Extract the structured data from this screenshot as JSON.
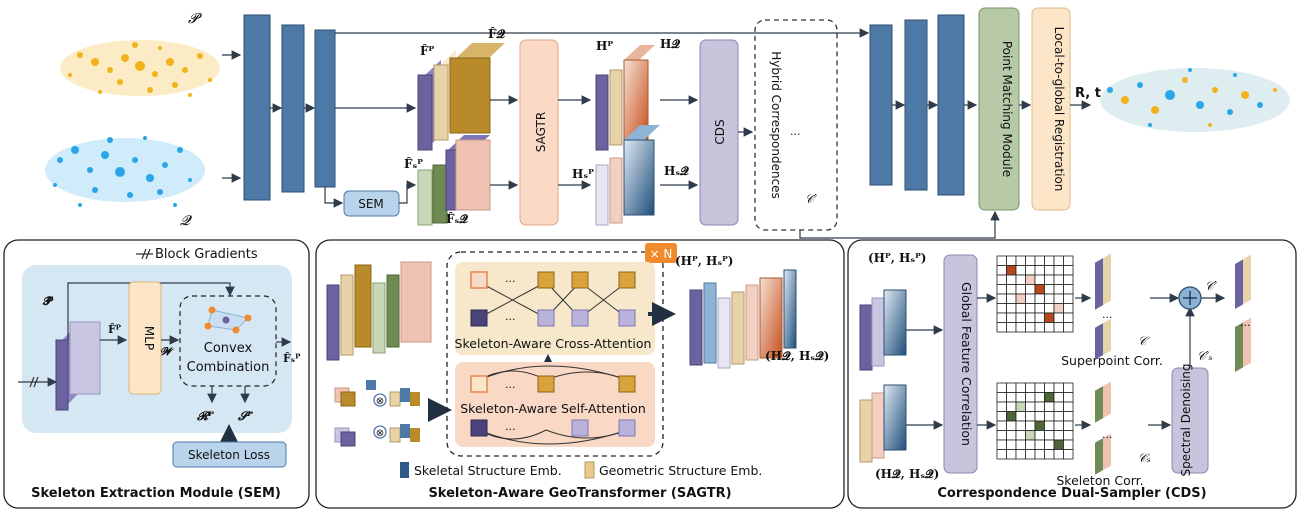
{
  "top": {
    "cloud_p_label": "𝓟",
    "cloud_q_label": "𝓠",
    "sem_box": "SEM",
    "f_p": "F̂ᴾ",
    "f_q": "F̂𝓠",
    "fs_p": "F̂ₛᴾ",
    "fs_q": "F̂ₛ𝓠",
    "sagtr_box": "SAGTR",
    "h_p": "Hᴾ",
    "h_q": "H𝓠",
    "hs_p": "Hₛᴾ",
    "hs_q": "Hₛ𝓠",
    "cds_box": "CDS",
    "hybrid_label": "Hybrid Correspondences",
    "c_prime": "𝒞′",
    "ellipsis": "...",
    "point_matching": "Point Matching Module",
    "local_to_global": "Local-to-global Registration",
    "rt": "R, t"
  },
  "sem_panel": {
    "block_gradients": "Block Gradients",
    "p_hat": "𝓟̂",
    "f_p": "F̂ᴾ",
    "mlp": "MLP",
    "w": "𝓦",
    "convex_line1": "Convex",
    "convex_line2": "Combination",
    "fs_p": "F̂ₛᴾ",
    "r_p": "𝓡ᴾ",
    "s_p": "𝓢ᴾ",
    "skeleton_loss": "Skeleton Loss",
    "title": "Skeleton Extraction Module (SEM)"
  },
  "sagtr_panel": {
    "times_n": "× N",
    "ellipsis": "...",
    "cross_attention": "Skeleton-Aware Cross-Attention",
    "self_attention": "Skeleton-Aware Self-Attention",
    "out_p": "(Hᴾ, Hₛᴾ)",
    "out_q": "(H𝓠, Hₛ𝓠)",
    "legend_skeletal": "Skeletal Structure Emb.",
    "legend_geometric": "Geometric Structure Emb.",
    "title": "Skeleton-Aware GeoTransformer (SAGTR)"
  },
  "cds_panel": {
    "in_p": "(Hᴾ, Hₛᴾ)",
    "in_q": "(H𝓠, Hₛ𝓠)",
    "gfc": "Global Feature Correlation",
    "superpoint_corr": "Superpoint Corr.",
    "skeleton_corr": "Skeleton Corr.",
    "c_label": "𝒞",
    "cs_label": "𝒞ₛ",
    "c_prime": "𝒞′",
    "cs_prime": "𝒞′ₛ",
    "spectral": "Spectral Denoising",
    "ellipsis": "...",
    "title": "Correspondence Dual-Sampler (CDS)"
  },
  "colors": {
    "encoder_blue": "#4e79a7",
    "sem_box": "#b9d3ea",
    "sagtr_box": "#fbd9c7",
    "cds_box": "#c9c3dc",
    "point_matching": "#b7c9a7",
    "local_global": "#fde6c8",
    "purple": "#6b63a0",
    "tan": "#e8d3a8",
    "gold": "#b98a2a",
    "green": "#6e8a55",
    "pink": "#f0c2b2",
    "cloud_yellow": "#f2b21c",
    "cloud_blue": "#2aa6e8"
  }
}
